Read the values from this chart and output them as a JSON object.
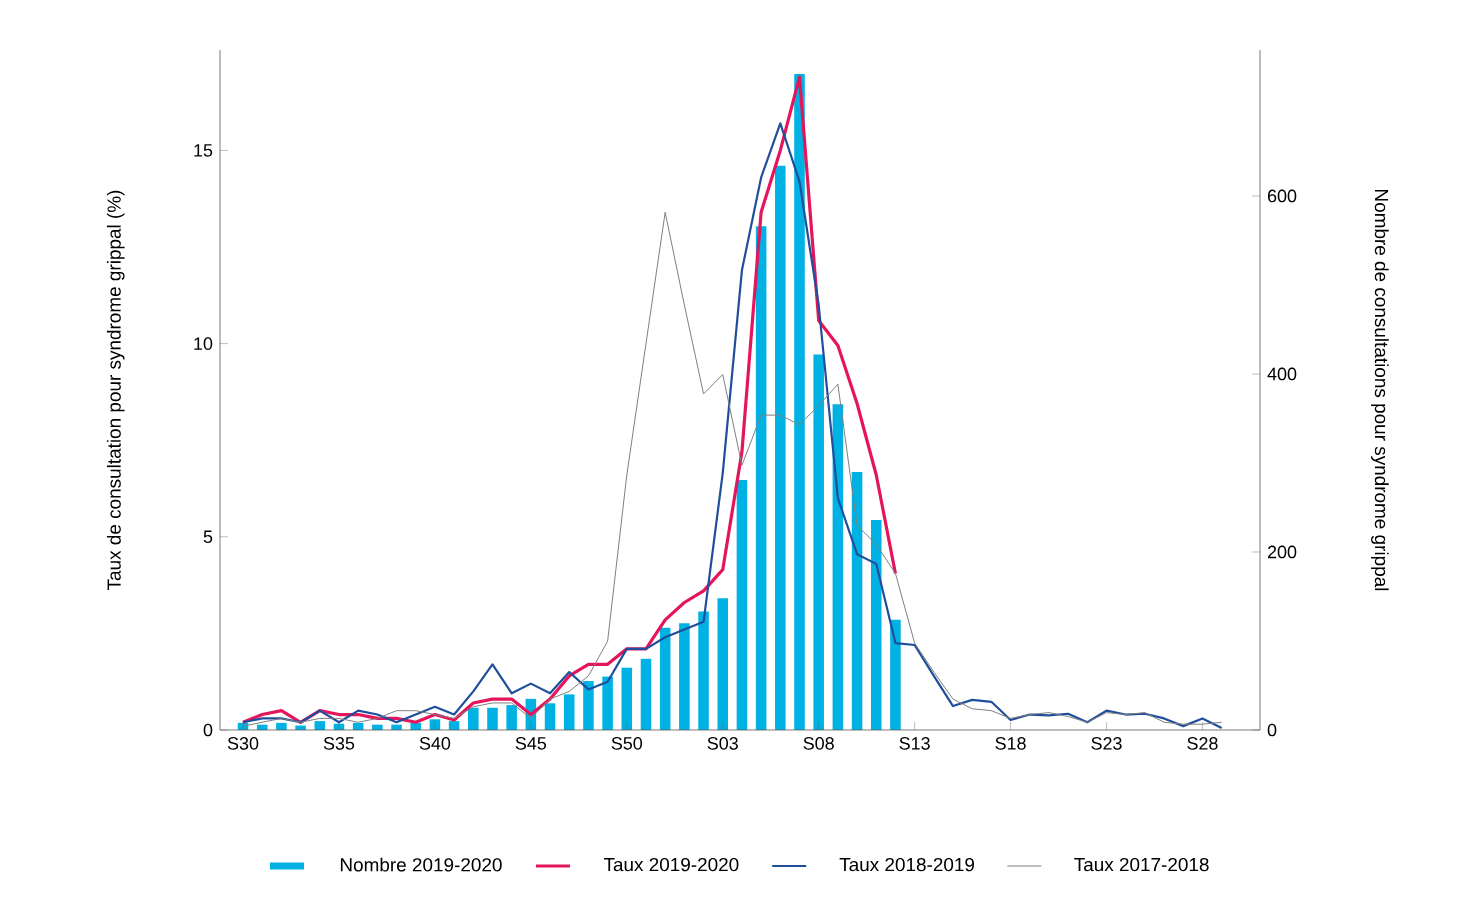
{
  "chart_data": {
    "type": "line",
    "categories": [
      "S30",
      null,
      null,
      null,
      null,
      "S35",
      null,
      null,
      null,
      null,
      "S40",
      null,
      null,
      null,
      null,
      "S45",
      null,
      null,
      null,
      null,
      "S50",
      null,
      null,
      null,
      null,
      "S03",
      null,
      null,
      null,
      null,
      "S08",
      null,
      null,
      null,
      null,
      "S13",
      null,
      null,
      null,
      null,
      "S18",
      null,
      null,
      null,
      null,
      "S23",
      null,
      null,
      null,
      null,
      "S28",
      null
    ],
    "ylabel": "Taux de consultation pour syndrome grippal (%)",
    "y2label": "Nombre de consultations pour syndrome grippal",
    "ylim": [
      0,
      17.6
    ],
    "yticks": [
      0,
      5,
      10,
      15
    ],
    "y2lim": [
      0,
      764
    ],
    "y2ticks": [
      0,
      200,
      400,
      600
    ],
    "legend": "bottom",
    "series": [
      {
        "name": "Nombre 2019-2020",
        "type": "bar",
        "axis": "y2",
        "color": "#00b2e3",
        "values": [
          8,
          6,
          8,
          5,
          10,
          7,
          8,
          6,
          6,
          8,
          12,
          10,
          25,
          25,
          28,
          35,
          30,
          40,
          55,
          60,
          70,
          80,
          115,
          120,
          133,
          148,
          281,
          566,
          634,
          737,
          422,
          366,
          290,
          236,
          124,
          null,
          null,
          null,
          null,
          null,
          null,
          null,
          null,
          null,
          null,
          null,
          null,
          null,
          null,
          null,
          null,
          null
        ]
      },
      {
        "name": "Taux 2019-2020",
        "color": "#e5155c",
        "values": [
          0.2,
          0.4,
          0.5,
          0.2,
          0.5,
          0.4,
          0.4,
          0.3,
          0.3,
          0.2,
          0.4,
          0.26,
          0.7,
          0.8,
          0.8,
          0.4,
          0.8,
          1.4,
          1.7,
          1.7,
          2.1,
          2.1,
          2.85,
          3.3,
          3.6,
          4.15,
          7.2,
          13.4,
          15,
          16.9,
          10.6,
          9.95,
          8.45,
          6.6,
          4.05,
          null,
          null,
          null,
          null,
          null,
          null,
          null,
          null,
          null,
          null,
          null,
          null,
          null,
          null,
          null,
          null,
          null
        ]
      },
      {
        "name": "Taux 2018-2019",
        "color": "#1f4e9c",
        "values": [
          0.2,
          0.3,
          0.3,
          0.2,
          0.5,
          0.2,
          0.5,
          0.4,
          0.2,
          0.4,
          0.6,
          0.4,
          1.0,
          1.7,
          0.95,
          1.2,
          0.95,
          1.5,
          1.05,
          1.25,
          2.1,
          2.1,
          2.4,
          2.6,
          2.8,
          6.65,
          11.9,
          14.3,
          15.7,
          14.2,
          11.0,
          6.0,
          4.55,
          4.3,
          2.25,
          2.2,
          1.4,
          0.62,
          0.78,
          0.73,
          0.26,
          0.4,
          0.38,
          0.42,
          0.2,
          0.5,
          0.4,
          0.42,
          0.3,
          0.1,
          0.3,
          0.05
        ]
      },
      {
        "name": "Taux 2017-2018",
        "color": "#808080",
        "values": [
          0.1,
          0.2,
          0.3,
          0.2,
          0.3,
          0.3,
          0.2,
          0.3,
          0.5,
          0.5,
          0.4,
          0.3,
          0.6,
          0.7,
          0.7,
          0.3,
          0.8,
          1.0,
          1.4,
          2.3,
          6.6,
          10.0,
          13.4,
          11.0,
          8.7,
          9.2,
          6.85,
          8.15,
          8.15,
          7.9,
          8.4,
          8.95,
          5.3,
          4.8,
          4.05,
          2.25,
          1.5,
          0.8,
          0.55,
          0.5,
          0.3,
          0.4,
          0.45,
          0.35,
          0.2,
          0.45,
          0.4,
          0.45,
          0.2,
          0.15,
          0.15,
          0.2
        ]
      }
    ]
  }
}
